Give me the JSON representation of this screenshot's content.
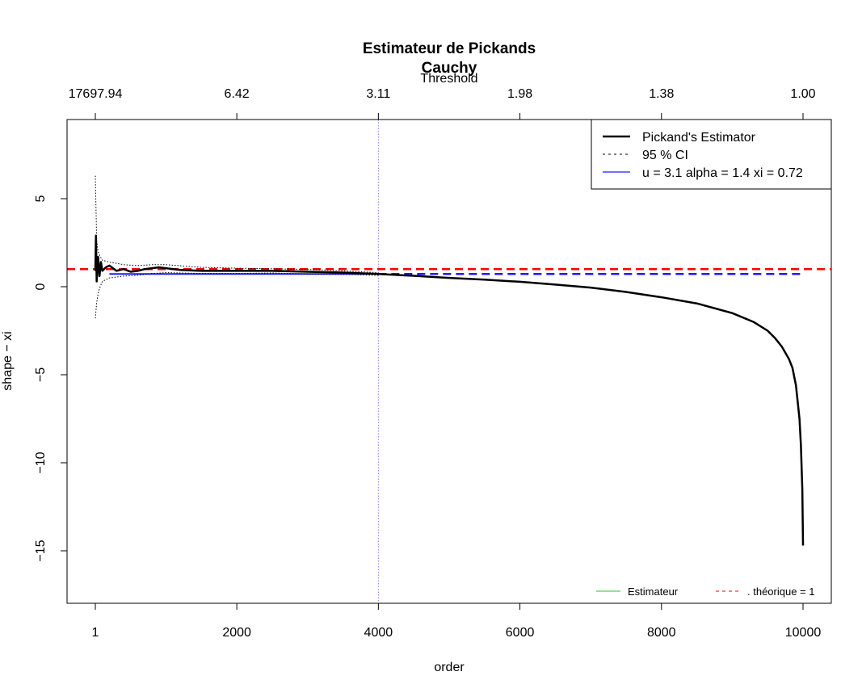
{
  "chart_data": {
    "type": "line",
    "title": "Estimateur de Pickands",
    "subtitle": "Cauchy",
    "xlabel": "order",
    "ylabel": "shape  − xi",
    "top_axis_label": "Threshold",
    "xlim": [
      1,
      10000
    ],
    "ylim": [
      -18,
      9.5
    ],
    "x_ticks": [
      {
        "value": 1,
        "label": "1"
      },
      {
        "value": 2000,
        "label": "2000"
      },
      {
        "value": 4000,
        "label": "4000"
      },
      {
        "value": 6000,
        "label": "6000"
      },
      {
        "value": 8000,
        "label": "8000"
      },
      {
        "value": 10000,
        "label": "10000"
      }
    ],
    "y_ticks": [
      {
        "value": 5,
        "label": "5"
      },
      {
        "value": 0,
        "label": "0"
      },
      {
        "value": -5,
        "label": "−5"
      },
      {
        "value": -10,
        "label": "−10"
      },
      {
        "value": -15,
        "label": "−15"
      }
    ],
    "top_ticks": [
      {
        "value": 1,
        "label": "17697.94"
      },
      {
        "value": 2000,
        "label": "6.42"
      },
      {
        "value": 4000,
        "label": "3.11"
      },
      {
        "value": 6000,
        "label": "1.98"
      },
      {
        "value": 8000,
        "label": "1.38"
      },
      {
        "value": 10000,
        "label": "1.00"
      }
    ],
    "series": [
      {
        "name": "Pickand's Estimator",
        "color": "#000000",
        "style": "solid",
        "x": [
          1,
          10,
          20,
          40,
          60,
          80,
          100,
          150,
          200,
          300,
          400,
          500,
          600,
          700,
          800,
          900,
          1000,
          1200,
          1500,
          2000,
          2500,
          3000,
          3500,
          4000,
          4500,
          5000,
          5500,
          6000,
          6500,
          7000,
          7500,
          8000,
          8500,
          9000,
          9300,
          9500,
          9600,
          9700,
          9800,
          9850,
          9900,
          9950,
          9970,
          9990,
          10000
        ],
        "y": [
          0.9,
          2.9,
          0.3,
          1.7,
          0.6,
          1.4,
          0.9,
          1.1,
          1.2,
          0.9,
          1.0,
          0.85,
          0.9,
          1.0,
          1.05,
          1.1,
          1.05,
          0.95,
          0.9,
          0.9,
          0.9,
          0.85,
          0.8,
          0.72,
          0.62,
          0.5,
          0.4,
          0.28,
          0.12,
          -0.05,
          -0.3,
          -0.6,
          -0.95,
          -1.5,
          -2.0,
          -2.5,
          -2.9,
          -3.4,
          -4.1,
          -4.6,
          -5.6,
          -7.5,
          -9.0,
          -11.5,
          -14.7
        ]
      },
      {
        "name": "95 % CI",
        "color": "#000000",
        "style": "dotted",
        "x": [
          1,
          20,
          40,
          60,
          100,
          200,
          400,
          600,
          800,
          1000,
          1500,
          2000,
          2500,
          3000,
          3500,
          4000
        ],
        "upper": [
          6.3,
          2.6,
          2.0,
          1.8,
          1.5,
          1.4,
          1.25,
          1.2,
          1.25,
          1.25,
          1.1,
          1.05,
          1.02,
          0.98,
          0.9,
          0.8
        ],
        "lower": [
          -1.8,
          -0.9,
          -0.4,
          -0.1,
          0.3,
          0.5,
          0.6,
          0.65,
          0.75,
          0.8,
          0.75,
          0.75,
          0.78,
          0.72,
          0.7,
          0.65
        ]
      },
      {
        "name": "u = 3.1 alpha = 1.4 xi = 0.72",
        "color": "#1a1aff",
        "style": "solid-then-dashed",
        "value": 0.72,
        "solid_range": [
          200,
          4000
        ],
        "dashed_range": [
          4000,
          10000
        ]
      },
      {
        "name": ". théorique = 1",
        "color": "#ff0000",
        "style": "dashed",
        "value": 1
      }
    ],
    "vline": {
      "x": 4000,
      "color": "#8080ff",
      "style": "dotted"
    },
    "legend_top": {
      "placement": "top-right",
      "items": [
        {
          "label": "Pickand's Estimator",
          "color": "#000000",
          "style": "solid",
          "width": 2.5
        },
        {
          "label": "95 % CI",
          "color": "#000000",
          "style": "dashed",
          "width": 1
        },
        {
          "label": "u = 3.1 alpha = 1.4 xi = 0.72",
          "color": "#1a1aff",
          "style": "solid",
          "width": 1.2
        }
      ]
    },
    "legend_bottom": {
      "placement": "bottom-right",
      "items": [
        {
          "label": "Estimateur",
          "color": "#22cc22",
          "style": "solid"
        },
        {
          "label": ". théorique = 1",
          "color": "#ff0000",
          "style": "dashed"
        }
      ]
    },
    "grid": false
  }
}
